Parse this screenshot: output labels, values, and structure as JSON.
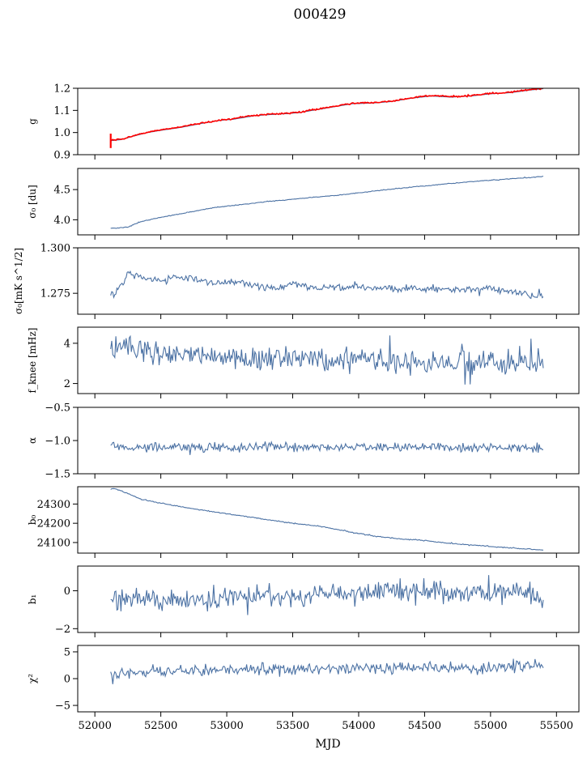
{
  "figure": {
    "title": "000429",
    "xlabel": "MJD"
  },
  "colors": {
    "series": "#4c72a4",
    "overlay": "#ff0000",
    "axes": "#000000"
  },
  "chart_data": [
    {
      "type": "line",
      "ylabel": "g",
      "ylim": [
        0.9,
        1.2
      ],
      "yticks": [
        0.9,
        1.0,
        1.1,
        1.2
      ],
      "ytick_labels": [
        "0.9",
        "1.0",
        "1.1",
        "1.2"
      ],
      "series": [
        {
          "x": [
            52120,
            52200,
            52300,
            52400,
            52500,
            52650,
            52800,
            52950,
            53050,
            53200,
            53300,
            53450,
            53550,
            53700,
            53850,
            53950,
            54100,
            54250,
            54400,
            54550,
            54700,
            54850,
            55000,
            55150,
            55300,
            55400
          ],
          "y": [
            0.963,
            0.968,
            0.985,
            1.0,
            1.01,
            1.023,
            1.04,
            1.055,
            1.06,
            1.075,
            1.08,
            1.085,
            1.09,
            1.105,
            1.12,
            1.13,
            1.133,
            1.14,
            1.155,
            1.165,
            1.16,
            1.165,
            1.175,
            1.18,
            1.192,
            1.198
          ],
          "noise": 0.0
        },
        {
          "x": [
            52120,
            52200,
            52300,
            52400,
            52500,
            52650,
            52800,
            52950,
            53050,
            53200,
            53300,
            53450,
            53550,
            53700,
            53850,
            53950,
            54100,
            54250,
            54400,
            54550,
            54700,
            54850,
            55000,
            55150,
            55300,
            55400
          ],
          "y": [
            0.965,
            0.97,
            0.987,
            1.002,
            1.012,
            1.025,
            1.042,
            1.057,
            1.062,
            1.077,
            1.082,
            1.087,
            1.092,
            1.107,
            1.122,
            1.132,
            1.135,
            1.142,
            1.157,
            1.167,
            1.162,
            1.167,
            1.177,
            1.182,
            1.194,
            1.2
          ],
          "noise": 0.002,
          "overlay": true,
          "spike": {
            "x": 52120,
            "y_low": 0.93,
            "y_high": 0.995
          }
        }
      ]
    },
    {
      "type": "line",
      "ylabel": "σ₀ [du]",
      "ylim": [
        3.75,
        4.85
      ],
      "yticks": [
        4.0,
        4.5
      ],
      "ytick_labels": [
        "4.0",
        "4.5"
      ],
      "series": [
        {
          "x": [
            52150,
            52250,
            52350,
            52500,
            52700,
            52900,
            53100,
            53300,
            53500,
            53700,
            53900,
            54100,
            54300,
            54500,
            54700,
            54900,
            55100,
            55300,
            55400
          ],
          "y": [
            3.86,
            3.88,
            3.97,
            4.04,
            4.12,
            4.2,
            4.25,
            4.3,
            4.34,
            4.38,
            4.42,
            4.47,
            4.52,
            4.56,
            4.6,
            4.64,
            4.67,
            4.7,
            4.72
          ],
          "noise": 0.004
        }
      ]
    },
    {
      "type": "line",
      "ylabel": "σ₀[mK s^1/2]",
      "ylim": [
        1.2635,
        1.3
      ],
      "yticks": [
        1.275,
        1.3
      ],
      "ytick_labels": [
        "1.275",
        "1.300"
      ],
      "series": [
        {
          "x": [
            52120,
            52150,
            52200,
            52250,
            52300,
            52400,
            52500,
            52600,
            52700,
            52800,
            52900,
            53000,
            53100,
            53200,
            53300,
            53400,
            53500,
            53600,
            53700,
            53800,
            53900,
            54000,
            54100,
            54200,
            54300,
            54400,
            54500,
            54600,
            54700,
            54800,
            54900,
            55000,
            55100,
            55200,
            55300,
            55400
          ],
          "y": [
            1.276,
            1.274,
            1.28,
            1.286,
            1.285,
            1.283,
            1.282,
            1.283,
            1.284,
            1.282,
            1.281,
            1.281,
            1.281,
            1.279,
            1.279,
            1.278,
            1.28,
            1.279,
            1.278,
            1.279,
            1.278,
            1.279,
            1.278,
            1.278,
            1.277,
            1.278,
            1.277,
            1.278,
            1.277,
            1.277,
            1.277,
            1.278,
            1.276,
            1.276,
            1.274,
            1.273
          ],
          "noise": 0.0012
        }
      ]
    },
    {
      "type": "line",
      "ylabel": "f_knee [mHz]",
      "ylim": [
        1.5,
        4.8
      ],
      "yticks": [
        2,
        4
      ],
      "ytick_labels": [
        "2",
        "4"
      ],
      "series": [
        {
          "x": [
            52120,
            52200,
            52300,
            52400,
            52500,
            52700,
            52900,
            53100,
            53300,
            53500,
            53700,
            53900,
            54100,
            54300,
            54500,
            54700,
            54900,
            55100,
            55300,
            55400
          ],
          "y": [
            3.9,
            3.8,
            3.7,
            3.6,
            3.5,
            3.4,
            3.4,
            3.3,
            3.3,
            3.25,
            3.2,
            3.2,
            3.15,
            3.1,
            3.05,
            3.05,
            3.0,
            3.0,
            2.95,
            2.9
          ],
          "noise": 0.35
        }
      ]
    },
    {
      "type": "line",
      "ylabel": "α",
      "ylim": [
        -1.5,
        -0.5
      ],
      "yticks": [
        -1.5,
        -1.0,
        -0.5
      ],
      "ytick_labels": [
        "−1.5",
        "−1.0",
        "−0.5"
      ],
      "series": [
        {
          "x": [
            52120,
            52500,
            53000,
            53500,
            54000,
            54500,
            55000,
            55400
          ],
          "y": [
            -1.1,
            -1.1,
            -1.1,
            -1.1,
            -1.1,
            -1.1,
            -1.1,
            -1.1
          ],
          "noise": 0.04
        }
      ]
    },
    {
      "type": "line",
      "ylabel": "b₀",
      "ylim": [
        24045,
        24390
      ],
      "yticks": [
        24100,
        24200,
        24300
      ],
      "ytick_labels": [
        "24100",
        "24200",
        "24300"
      ],
      "series": [
        {
          "x": [
            52150,
            52250,
            52350,
            52500,
            52700,
            52900,
            53100,
            53300,
            53500,
            53700,
            53900,
            54100,
            54300,
            54500,
            54700,
            54900,
            55100,
            55300,
            55400
          ],
          "y": [
            24380,
            24355,
            24325,
            24305,
            24280,
            24260,
            24240,
            24220,
            24200,
            24185,
            24160,
            24135,
            24120,
            24110,
            24095,
            24085,
            24075,
            24065,
            24060
          ],
          "noise": 1.5
        }
      ]
    },
    {
      "type": "line",
      "ylabel": "b₁",
      "ylim": [
        -2.2,
        1.3
      ],
      "yticks": [
        -2,
        0
      ],
      "ytick_labels": [
        "−2",
        "0"
      ],
      "series": [
        {
          "x": [
            52120,
            52400,
            52800,
            53200,
            53600,
            54000,
            54400,
            54800,
            55200,
            55400
          ],
          "y": [
            -0.5,
            -0.5,
            -0.4,
            -0.3,
            -0.3,
            -0.1,
            0.0,
            -0.1,
            -0.1,
            -0.4
          ],
          "noise": 0.35
        }
      ]
    },
    {
      "type": "line",
      "ylabel": "χ²",
      "ylim": [
        -6.2,
        6.2
      ],
      "yticks": [
        -5,
        0,
        5
      ],
      "ytick_labels": [
        "−5",
        "0",
        "5"
      ],
      "xticks": [
        52000,
        52500,
        53000,
        53500,
        54000,
        54500,
        55000,
        55500
      ],
      "series": [
        {
          "x": [
            52120,
            52300,
            52600,
            53000,
            53400,
            53800,
            54200,
            54600,
            55000,
            55400
          ],
          "y": [
            0.3,
            1.2,
            1.5,
            1.6,
            1.8,
            2.0,
            2.2,
            2.0,
            2.1,
            2.5
          ],
          "noise": 0.7
        }
      ]
    }
  ]
}
